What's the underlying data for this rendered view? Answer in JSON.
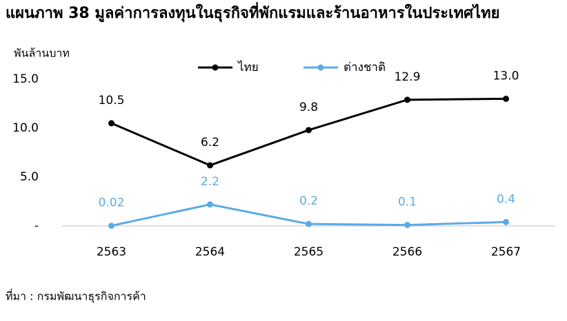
{
  "chart_data": {
    "type": "line",
    "title": "แผนภาพ  38  มูลค่าการลงทุนในธุรกิจที่พักแรมและร้านอาหารในประเทศไทย",
    "y_axis_label": "พันล้านบาท",
    "source": "ที่มา : กรมพัฒนาธุรกิจการค้า",
    "categories": [
      "2563",
      "2564",
      "2565",
      "2566",
      "2567"
    ],
    "series": [
      {
        "name": "ไทย",
        "color": "#000000",
        "values": [
          10.5,
          6.2,
          9.8,
          12.9,
          13.0
        ],
        "value_labels": [
          "10.5",
          "6.2",
          "9.8",
          "12.9",
          "13.0"
        ]
      },
      {
        "name": "ต่างชาติ",
        "color": "#5aaae6",
        "values": [
          0.02,
          2.2,
          0.2,
          0.1,
          0.4
        ]
      }
    ],
    "ylim": [
      0,
      15
    ],
    "yticks": [
      {
        "value": 0,
        "label": "-"
      },
      {
        "value": 5,
        "label": "5.0"
      },
      {
        "value": 10,
        "label": "10.0"
      },
      {
        "value": 15,
        "label": "15.0"
      }
    ],
    "grid": false,
    "legend": "top"
  }
}
